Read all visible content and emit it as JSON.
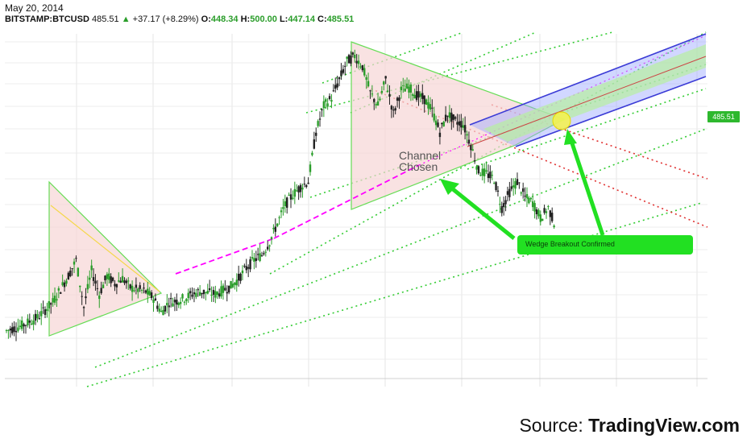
{
  "header": {
    "date": "May 20, 2014",
    "symbol": "BITSTAMP:BTCUSD",
    "last": "485.51",
    "change": "+37.17 (+8.29%)",
    "open_label": "O:",
    "open": "448.34",
    "high_label": "H:",
    "high": "500.00",
    "low_label": "L:",
    "low": "447.14",
    "close_label": "C:",
    "close": "485.51"
  },
  "price_tag": "485.51",
  "annotations": {
    "channel_line1": "Channel",
    "channel_line2": "Chosen",
    "callout": "Wedge Breakout Confirmed"
  },
  "source": {
    "prefix": "Source: ",
    "name": "TradingView.com"
  },
  "colors": {
    "up": "#2a9d2a",
    "down": "#222222",
    "wedge_fill": "#f7d6d6",
    "callout": "#22e022",
    "channel_blue": "#3b3bd6",
    "magenta": "#ff00ff",
    "red_dotted": "#e03030",
    "green_dotted": "#33cc33"
  },
  "chart_data": {
    "type": "line",
    "title": "BITSTAMP:BTCUSD",
    "price_path": [
      [
        0,
        90
      ],
      [
        2,
        110
      ],
      [
        4,
        140
      ],
      [
        6,
        200
      ],
      [
        8,
        300
      ],
      [
        9,
        360
      ],
      [
        10,
        180
      ],
      [
        11,
        320
      ],
      [
        12,
        230
      ],
      [
        13,
        300
      ],
      [
        14,
        270
      ],
      [
        15,
        290
      ],
      [
        16,
        255
      ],
      [
        18,
        240
      ],
      [
        19,
        215
      ],
      [
        20,
        160
      ],
      [
        21,
        200
      ],
      [
        22,
        205
      ],
      [
        23,
        215
      ],
      [
        24,
        230
      ],
      [
        25,
        240
      ],
      [
        26,
        235
      ],
      [
        27,
        230
      ],
      [
        28,
        245
      ],
      [
        29,
        260
      ],
      [
        30,
        290
      ],
      [
        31,
        330
      ],
      [
        32,
        360
      ],
      [
        33,
        380
      ],
      [
        34,
        430
      ],
      [
        35,
        500
      ],
      [
        36,
        570
      ],
      [
        37,
        610
      ],
      [
        38,
        640
      ],
      [
        39,
        660
      ],
      [
        40,
        850
      ],
      [
        41,
        950
      ],
      [
        42,
        980
      ],
      [
        43,
        1050
      ],
      [
        44,
        1120
      ],
      [
        45,
        1140
      ],
      [
        46,
        1100
      ],
      [
        47,
        1000
      ],
      [
        48,
        950
      ],
      [
        49,
        1050
      ],
      [
        50,
        920
      ],
      [
        51,
        1010
      ],
      [
        52,
        1020
      ],
      [
        53,
        990
      ],
      [
        54,
        975
      ],
      [
        55,
        930
      ],
      [
        56,
        850
      ],
      [
        57,
        920
      ],
      [
        58,
        890
      ],
      [
        59,
        880
      ],
      [
        60,
        800
      ],
      [
        61,
        700
      ],
      [
        62,
        690
      ],
      [
        63,
        670
      ],
      [
        64,
        560
      ],
      [
        65,
        620
      ],
      [
        66,
        660
      ],
      [
        67,
        600
      ],
      [
        68,
        580
      ],
      [
        69,
        520
      ],
      [
        70,
        560
      ],
      [
        71,
        485
      ]
    ],
    "y_range": [
      0,
      1200
    ]
  }
}
